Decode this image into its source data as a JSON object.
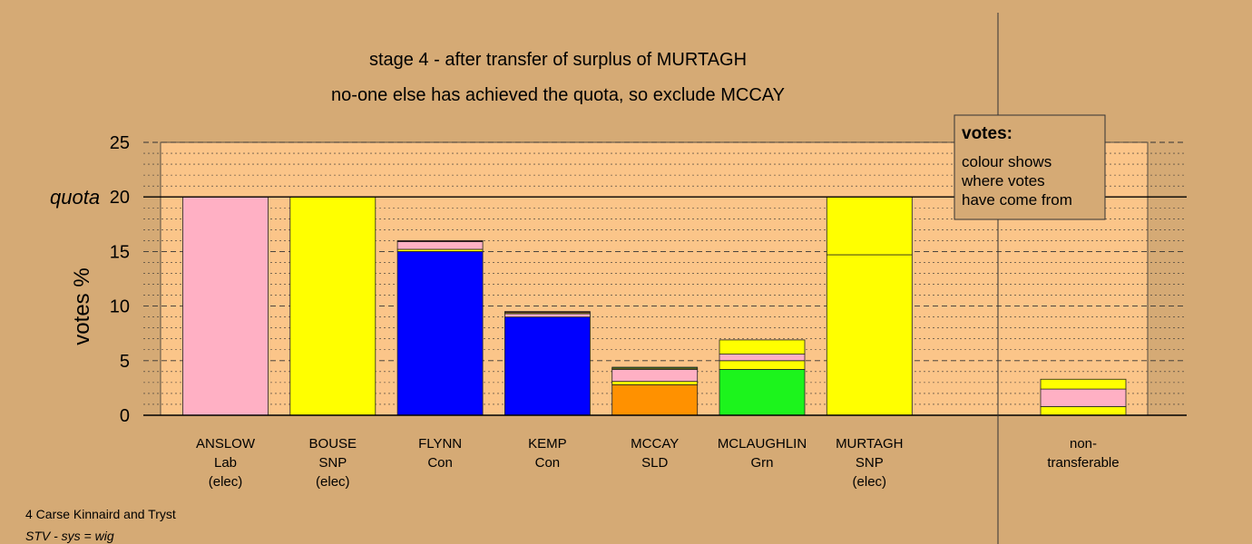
{
  "chart_data": {
    "type": "bar",
    "title": "stage 4 - after transfer of surplus of MURTAGH",
    "subtitle": "no-one else has achieved the quota, so exclude MCCAY",
    "ylabel": "votes %",
    "ylim": [
      0,
      25
    ],
    "yticks": [
      0,
      5,
      10,
      15,
      20,
      25
    ],
    "quota": 20,
    "quota_label": "quota",
    "colors": {
      "pink": "#ffb0c4",
      "yellow": "#ffff00",
      "blue": "#0000ff",
      "orange": "#ff9100",
      "green": "#1cf41c",
      "darkgreen": "#2e8b2e",
      "maroon": "#7a1f1f"
    },
    "candidates": [
      {
        "lines": [
          "ANSLOW",
          "Lab",
          "(elec)"
        ],
        "segments": [
          {
            "color": "#ffb0c4",
            "value": 20
          }
        ]
      },
      {
        "lines": [
          "BOUSE",
          "SNP",
          "(elec)"
        ],
        "segments": [
          {
            "color": "#ffff00",
            "value": 20
          }
        ]
      },
      {
        "lines": [
          "FLYNN",
          "Con"
        ],
        "segments": [
          {
            "color": "#0000ff",
            "value": 15.0
          },
          {
            "color": "#ffff00",
            "value": 0.2
          },
          {
            "color": "#ffb0c4",
            "value": 0.7
          },
          {
            "color": "#7a1f1f",
            "value": 0.1
          }
        ]
      },
      {
        "lines": [
          "KEMP",
          "Con"
        ],
        "segments": [
          {
            "color": "#0000ff",
            "value": 9.0
          },
          {
            "color": "#ffb0c4",
            "value": 0.3
          },
          {
            "color": "#ffff00",
            "value": 0.1
          },
          {
            "color": "#7a1f1f",
            "value": 0.1
          }
        ]
      },
      {
        "lines": [
          "MCCAY",
          "SLD"
        ],
        "segments": [
          {
            "color": "#ff9100",
            "value": 2.8
          },
          {
            "color": "#ffff00",
            "value": 0.3
          },
          {
            "color": "#ffb0c4",
            "value": 1.1
          },
          {
            "color": "#ffff00",
            "value": 0.1
          },
          {
            "color": "#2e8b2e",
            "value": 0.1
          }
        ]
      },
      {
        "lines": [
          "MCLAUGHLIN",
          "Grn"
        ],
        "segments": [
          {
            "color": "#1cf41c",
            "value": 4.2
          },
          {
            "color": "#ffff00",
            "value": 0.8
          },
          {
            "color": "#ffb0c4",
            "value": 0.6
          },
          {
            "color": "#ffff00",
            "value": 1.3
          }
        ]
      },
      {
        "lines": [
          "MURTAGH",
          "SNP",
          "(elec)"
        ],
        "segments": [
          {
            "color": "#ffff00",
            "value": 14.7
          },
          {
            "color": "#ffff00",
            "value": 5.3
          }
        ]
      },
      {
        "lines": [
          "non-",
          "transferable"
        ],
        "segments": [
          {
            "color": "#ffff00",
            "value": 0.8
          },
          {
            "color": "#ffb0c4",
            "value": 1.6
          },
          {
            "color": "#ffff00",
            "value": 0.9
          }
        ]
      }
    ]
  },
  "legend": {
    "title": "votes:",
    "lines": [
      "colour shows",
      "where votes",
      "have come from"
    ]
  },
  "footer": {
    "ward": "4 Carse Kinnaird and Tryst",
    "system": "STV - sys = wig"
  }
}
